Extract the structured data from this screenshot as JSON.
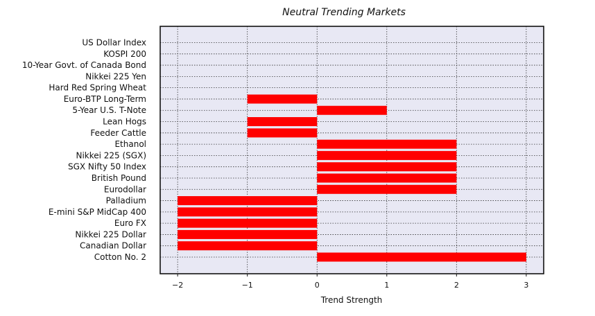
{
  "chart_data": {
    "type": "bar",
    "orientation": "horizontal",
    "title": "Neutral Trending Markets",
    "xlabel": "Trend Strength",
    "ylabel": "",
    "xlim": [
      -2.25,
      3.25
    ],
    "xticks": [
      -2,
      -1,
      0,
      1,
      2,
      3
    ],
    "xtick_labels": [
      "−2",
      "−1",
      "0",
      "1",
      "2",
      "3"
    ],
    "grid": true,
    "bar_color": "#ff0000",
    "background_color": "#e8e8f4",
    "categories": [
      "US Dollar Index",
      "KOSPI 200",
      "10-Year Govt. of Canada Bond",
      "Nikkei 225 Yen",
      "Hard Red Spring Wheat",
      "Euro-BTP Long-Term",
      "5-Year U.S. T-Note",
      "Lean Hogs",
      "Feeder Cattle",
      "Ethanol",
      "Nikkei 225 (SGX)",
      "SGX Nifty 50 Index",
      "British Pound",
      "Eurodollar",
      "Palladium",
      "E-mini S&P MidCap 400",
      "Euro FX",
      "Nikkei 225 Dollar",
      "Canadian Dollar",
      "Cotton No. 2"
    ],
    "values": [
      0,
      0,
      0,
      0,
      0,
      -1,
      1,
      -1,
      -1,
      2,
      2,
      2,
      2,
      2,
      -2,
      -2,
      -2,
      -2,
      -2,
      3
    ]
  }
}
